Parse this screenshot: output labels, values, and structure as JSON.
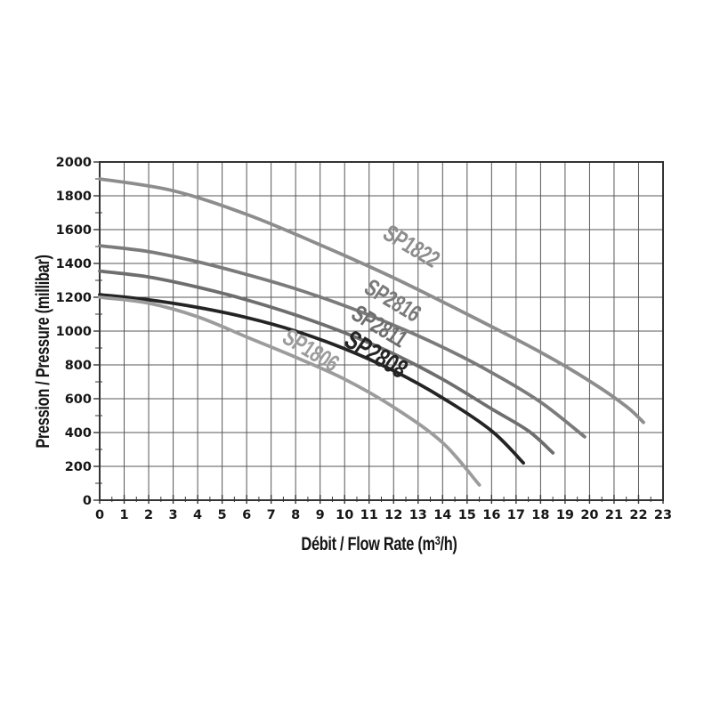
{
  "page": {
    "background": "#ffffff"
  },
  "chart_data": {
    "type": "line",
    "title": "",
    "ylabel": "Pression / Pressure (millibar)",
    "xlabel_pre": "Débit / Flow Rate (m",
    "xlabel_sup": "3",
    "xlabel_post": "/h)",
    "xlim": [
      0,
      23
    ],
    "ylim": [
      0,
      2000
    ],
    "x_ticks": [
      0,
      1,
      2,
      3,
      4,
      5,
      6,
      7,
      8,
      9,
      10,
      11,
      12,
      13,
      14,
      15,
      16,
      17,
      18,
      19,
      20,
      21,
      22,
      23
    ],
    "y_ticks": [
      0,
      200,
      400,
      600,
      800,
      1000,
      1200,
      1400,
      1600,
      1800,
      2000
    ],
    "x_minor_step": 0.5,
    "y_minor_step": 100,
    "grid": {
      "x_step": 1,
      "y_step": 200,
      "color": "#575757",
      "border_color": "#333333"
    },
    "tick_label_color": "#161616",
    "legend_position": "labels-on-curves",
    "series": [
      {
        "name": "SP1822",
        "color": "#8d8d8d",
        "label": {
          "x": 12.72,
          "y": 1500,
          "angle": 31,
          "size": 27
        },
        "points": [
          [
            0,
            1900
          ],
          [
            3,
            1830
          ],
          [
            6,
            1690
          ],
          [
            9,
            1510
          ],
          [
            12,
            1315
          ],
          [
            15,
            1100
          ],
          [
            18,
            875
          ],
          [
            20,
            705
          ],
          [
            21.5,
            555
          ],
          [
            22.2,
            460
          ]
        ]
      },
      {
        "name": "SP2816",
        "color": "#7b7b7b",
        "label": {
          "x": 11.96,
          "y": 1180,
          "angle": 31,
          "size": 27
        },
        "points": [
          [
            0,
            1505
          ],
          [
            2,
            1470
          ],
          [
            4,
            1410
          ],
          [
            6,
            1335
          ],
          [
            8,
            1250
          ],
          [
            10,
            1150
          ],
          [
            12,
            1035
          ],
          [
            14,
            905
          ],
          [
            16,
            755
          ],
          [
            18,
            580
          ],
          [
            19.8,
            375
          ]
        ]
      },
      {
        "name": "SP2811",
        "color": "#6e6e6e",
        "label": {
          "x": 11.42,
          "y": 1026,
          "angle": 31,
          "size": 27
        },
        "points": [
          [
            0,
            1355
          ],
          [
            2,
            1320
          ],
          [
            4,
            1260
          ],
          [
            6,
            1185
          ],
          [
            8,
            1095
          ],
          [
            10,
            990
          ],
          [
            12,
            865
          ],
          [
            14,
            715
          ],
          [
            16,
            540
          ],
          [
            17.5,
            410
          ],
          [
            18.5,
            280
          ]
        ]
      },
      {
        "name": "SP2808",
        "color": "#242424",
        "label": {
          "x": 11.27,
          "y": 858,
          "angle": 31,
          "size": 30
        },
        "points": [
          [
            0,
            1215
          ],
          [
            2,
            1185
          ],
          [
            4,
            1140
          ],
          [
            6,
            1080
          ],
          [
            8,
            1000
          ],
          [
            10,
            895
          ],
          [
            12,
            765
          ],
          [
            14,
            605
          ],
          [
            16,
            410
          ],
          [
            17.3,
            220
          ]
        ]
      },
      {
        "name": "SP1806",
        "color": "#9c9c9c",
        "label": {
          "x": 8.6,
          "y": 884,
          "angle": 31,
          "size": 27
        },
        "points": [
          [
            0,
            1200
          ],
          [
            2,
            1165
          ],
          [
            4,
            1085
          ],
          [
            6,
            965
          ],
          [
            8,
            845
          ],
          [
            10,
            715
          ],
          [
            12,
            550
          ],
          [
            14,
            340
          ],
          [
            15.5,
            90
          ]
        ]
      }
    ]
  }
}
